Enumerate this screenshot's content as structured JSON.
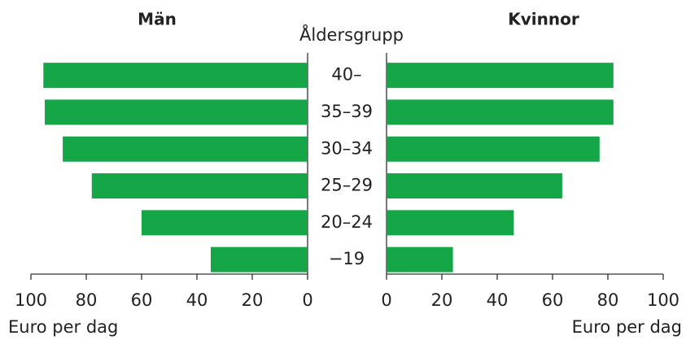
{
  "chart_data": {
    "type": "butterfly_bar",
    "category_label": "Åldersgrupp",
    "categories": [
      "40–",
      "35–39",
      "30–34",
      "25–29",
      "20–24",
      "−19"
    ],
    "series": [
      {
        "name": "Män",
        "color": "#14a647",
        "values": [
          95.5,
          95,
          88.5,
          78,
          60,
          35
        ]
      },
      {
        "name": "Kvinnor",
        "color": "#14a647",
        "values": [
          82,
          82,
          77,
          63.5,
          46,
          24
        ]
      }
    ],
    "xlabel": "Euro per dag",
    "xlim": [
      0,
      100
    ],
    "xticks": [
      0,
      20,
      40,
      60,
      80,
      100
    ]
  }
}
